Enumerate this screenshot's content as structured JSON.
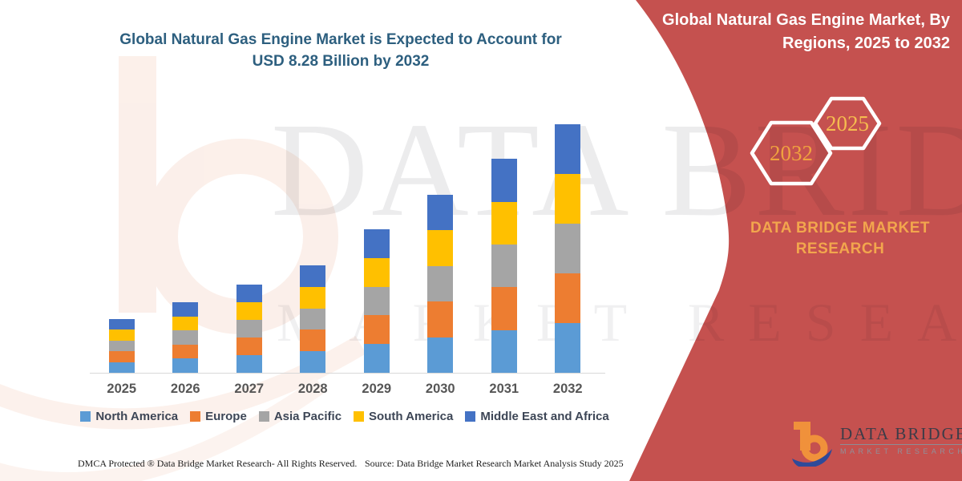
{
  "left_panel": {
    "title_line1": "Global Natural Gas Engine Market is Expected to Account for",
    "title_line2": "USD 8.28 Billion by 2032"
  },
  "right_panel": {
    "title_line1": "Global Natural Gas Engine Market, By",
    "title_line2": "Regions, 2025 to 2032",
    "hexagon_back_label": "2032",
    "hexagon_front_label": "2025",
    "brand_line1": "DATA BRIDGE MARKET",
    "brand_line2": "RESEARCH"
  },
  "logo": {
    "name": "DATA BRIDGE",
    "subtitle": "MARKET RESEARCH"
  },
  "footer": {
    "left": "DMCA Protected ® Data Bridge Market Research-  All Rights Reserved.",
    "source": "Source: Data Bridge Market Research  Market Analysis Study 2025"
  },
  "watermark": {
    "row1": "DATA BRIDGE",
    "row2": "MARKET RESEARCH"
  },
  "colors": {
    "panel_red": "#C5514F",
    "title_blue": "#2D5F7F",
    "accent_yellow": "#F2A64D"
  },
  "chart_data": {
    "type": "bar",
    "stacked": true,
    "title": "Global Natural Gas Engine Market is Expected to Account for USD 8.28 Billion by 2032",
    "categories": [
      "2025",
      "2026",
      "2027",
      "2028",
      "2029",
      "2030",
      "2031",
      "2032"
    ],
    "totals_usd_billion": [
      1.79,
      2.35,
      2.94,
      3.58,
      4.78,
      5.93,
      7.13,
      8.28
    ],
    "series": [
      {
        "name": "North America",
        "color": "#5B9BD5",
        "values": [
          0.358,
          0.47,
          0.588,
          0.716,
          0.956,
          1.186,
          1.426,
          1.656
        ]
      },
      {
        "name": "Europe",
        "color": "#ED7D31",
        "values": [
          0.358,
          0.47,
          0.588,
          0.716,
          0.956,
          1.186,
          1.426,
          1.656
        ]
      },
      {
        "name": "Asia Pacific",
        "color": "#A5A5A5",
        "values": [
          0.358,
          0.47,
          0.588,
          0.716,
          0.956,
          1.186,
          1.426,
          1.656
        ]
      },
      {
        "name": "South America",
        "color": "#FFC000",
        "values": [
          0.358,
          0.47,
          0.588,
          0.716,
          0.956,
          1.186,
          1.426,
          1.656
        ]
      },
      {
        "name": "Middle East and Africa",
        "color": "#4472C4",
        "values": [
          0.358,
          0.47,
          0.588,
          0.716,
          0.956,
          1.186,
          1.426,
          1.656
        ]
      }
    ],
    "value_axis": "hidden",
    "gridlines": false,
    "legend_position": "bottom",
    "ylim": [
      0,
      8.28
    ]
  }
}
